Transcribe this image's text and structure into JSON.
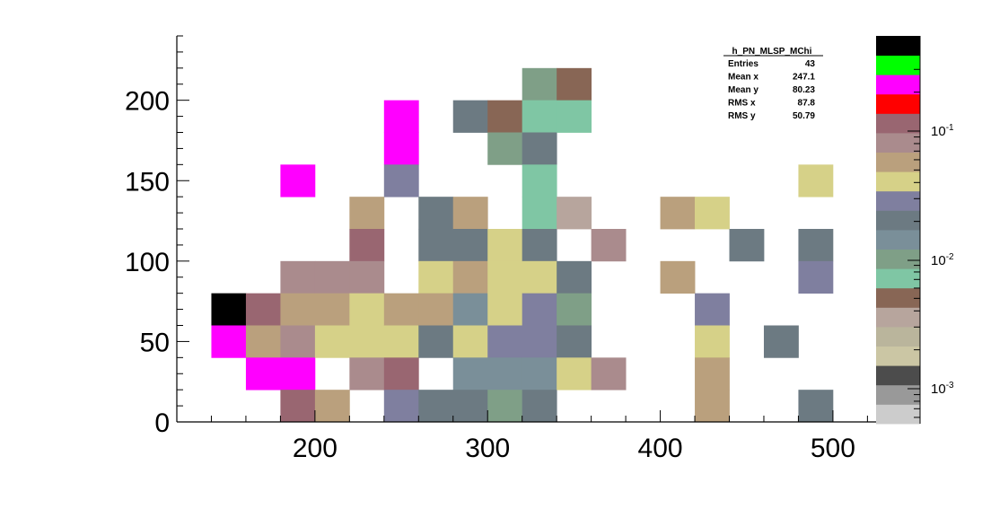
{
  "chart_data": {
    "type": "heatmap",
    "title": "",
    "xlabel": "",
    "ylabel": "",
    "xlim": [
      120,
      525
    ],
    "ylim": [
      0,
      240
    ],
    "x_ticks": [
      200,
      300,
      400,
      500
    ],
    "y_ticks": [
      0,
      50,
      100,
      150,
      200
    ],
    "x_bin_width": 20,
    "y_bin_width": 20,
    "z_scale": "log",
    "z_ticks": [
      {
        "base": "10",
        "exp": "-1"
      },
      {
        "base": "10",
        "exp": "-2"
      },
      {
        "base": "10",
        "exp": "-3"
      }
    ],
    "z_palette": [
      "#cccccc",
      "#999999",
      "#4c4c4c",
      "#cbc6a4",
      "#bab59c",
      "#b7a59d",
      "#886655",
      "#7fc6a4",
      "#7f9f87",
      "#7a8f99",
      "#6c7a82",
      "#7f7f9f",
      "#d6d188",
      "#baa07d",
      "#aa8b8d",
      "#996671",
      "#ff0000",
      "#ff00ff",
      "#00ff00",
      "#000000"
    ],
    "cells": [
      {
        "x": 150,
        "y": 70,
        "color": "#000000"
      },
      {
        "x": 150,
        "y": 50,
        "color": "#ff00ff"
      },
      {
        "x": 170,
        "y": 70,
        "color": "#996671"
      },
      {
        "x": 170,
        "y": 50,
        "color": "#baa07d"
      },
      {
        "x": 170,
        "y": 30,
        "color": "#ff00ff"
      },
      {
        "x": 190,
        "y": 150,
        "color": "#ff00ff"
      },
      {
        "x": 190,
        "y": 90,
        "color": "#aa8b8d"
      },
      {
        "x": 190,
        "y": 70,
        "color": "#baa07d"
      },
      {
        "x": 190,
        "y": 50,
        "color": "#aa8b8d"
      },
      {
        "x": 190,
        "y": 30,
        "color": "#ff00ff"
      },
      {
        "x": 190,
        "y": 10,
        "color": "#996671"
      },
      {
        "x": 210,
        "y": 90,
        "color": "#aa8b8d"
      },
      {
        "x": 210,
        "y": 70,
        "color": "#baa07d"
      },
      {
        "x": 210,
        "y": 50,
        "color": "#d6d188"
      },
      {
        "x": 210,
        "y": 10,
        "color": "#baa07d"
      },
      {
        "x": 230,
        "y": 130,
        "color": "#baa07d"
      },
      {
        "x": 230,
        "y": 110,
        "color": "#996671"
      },
      {
        "x": 230,
        "y": 90,
        "color": "#aa8b8d"
      },
      {
        "x": 230,
        "y": 70,
        "color": "#d6d188"
      },
      {
        "x": 230,
        "y": 50,
        "color": "#d6d188"
      },
      {
        "x": 230,
        "y": 30,
        "color": "#aa8b8d"
      },
      {
        "x": 250,
        "y": 190,
        "color": "#ff00ff"
      },
      {
        "x": 250,
        "y": 170,
        "color": "#ff00ff"
      },
      {
        "x": 250,
        "y": 150,
        "color": "#7f7f9f"
      },
      {
        "x": 250,
        "y": 70,
        "color": "#baa07d"
      },
      {
        "x": 250,
        "y": 50,
        "color": "#d6d188"
      },
      {
        "x": 250,
        "y": 30,
        "color": "#996671"
      },
      {
        "x": 250,
        "y": 10,
        "color": "#7f7f9f"
      },
      {
        "x": 270,
        "y": 130,
        "color": "#6c7a82"
      },
      {
        "x": 270,
        "y": 110,
        "color": "#6c7a82"
      },
      {
        "x": 270,
        "y": 90,
        "color": "#d6d188"
      },
      {
        "x": 270,
        "y": 70,
        "color": "#baa07d"
      },
      {
        "x": 270,
        "y": 50,
        "color": "#6c7a82"
      },
      {
        "x": 270,
        "y": 10,
        "color": "#6c7a82"
      },
      {
        "x": 290,
        "y": 190,
        "color": "#6c7a82"
      },
      {
        "x": 290,
        "y": 130,
        "color": "#baa07d"
      },
      {
        "x": 290,
        "y": 110,
        "color": "#6c7a82"
      },
      {
        "x": 290,
        "y": 90,
        "color": "#baa07d"
      },
      {
        "x": 290,
        "y": 70,
        "color": "#7a8f99"
      },
      {
        "x": 290,
        "y": 50,
        "color": "#d6d188"
      },
      {
        "x": 290,
        "y": 30,
        "color": "#7a8f99"
      },
      {
        "x": 290,
        "y": 10,
        "color": "#6c7a82"
      },
      {
        "x": 310,
        "y": 190,
        "color": "#886655"
      },
      {
        "x": 310,
        "y": 170,
        "color": "#7f9f87"
      },
      {
        "x": 310,
        "y": 110,
        "color": "#d6d188"
      },
      {
        "x": 310,
        "y": 90,
        "color": "#d6d188"
      },
      {
        "x": 310,
        "y": 70,
        "color": "#d6d188"
      },
      {
        "x": 310,
        "y": 50,
        "color": "#7f7f9f"
      },
      {
        "x": 310,
        "y": 30,
        "color": "#7a8f99"
      },
      {
        "x": 310,
        "y": 10,
        "color": "#7f9f87"
      },
      {
        "x": 330,
        "y": 210,
        "color": "#7f9f87"
      },
      {
        "x": 330,
        "y": 190,
        "color": "#7fc6a4"
      },
      {
        "x": 330,
        "y": 170,
        "color": "#6c7a82"
      },
      {
        "x": 330,
        "y": 150,
        "color": "#7fc6a4"
      },
      {
        "x": 330,
        "y": 130,
        "color": "#7fc6a4"
      },
      {
        "x": 330,
        "y": 110,
        "color": "#6c7a82"
      },
      {
        "x": 330,
        "y": 90,
        "color": "#d6d188"
      },
      {
        "x": 330,
        "y": 70,
        "color": "#7f7f9f"
      },
      {
        "x": 330,
        "y": 50,
        "color": "#7f7f9f"
      },
      {
        "x": 330,
        "y": 30,
        "color": "#7a8f99"
      },
      {
        "x": 330,
        "y": 10,
        "color": "#6c7a82"
      },
      {
        "x": 350,
        "y": 210,
        "color": "#886655"
      },
      {
        "x": 350,
        "y": 190,
        "color": "#7fc6a4"
      },
      {
        "x": 350,
        "y": 130,
        "color": "#b7a59d"
      },
      {
        "x": 350,
        "y": 90,
        "color": "#6c7a82"
      },
      {
        "x": 350,
        "y": 70,
        "color": "#7f9f87"
      },
      {
        "x": 350,
        "y": 50,
        "color": "#6c7a82"
      },
      {
        "x": 350,
        "y": 30,
        "color": "#d6d188"
      },
      {
        "x": 370,
        "y": 110,
        "color": "#aa8b8d"
      },
      {
        "x": 370,
        "y": 30,
        "color": "#aa8b8d"
      },
      {
        "x": 410,
        "y": 130,
        "color": "#baa07d"
      },
      {
        "x": 410,
        "y": 90,
        "color": "#baa07d"
      },
      {
        "x": 430,
        "y": 130,
        "color": "#d6d188"
      },
      {
        "x": 430,
        "y": 70,
        "color": "#7f7f9f"
      },
      {
        "x": 430,
        "y": 50,
        "color": "#d6d188"
      },
      {
        "x": 430,
        "y": 30,
        "color": "#baa07d"
      },
      {
        "x": 430,
        "y": 10,
        "color": "#baa07d"
      },
      {
        "x": 450,
        "y": 110,
        "color": "#6c7a82"
      },
      {
        "x": 470,
        "y": 50,
        "color": "#6c7a82"
      },
      {
        "x": 490,
        "y": 150,
        "color": "#d6d188"
      },
      {
        "x": 490,
        "y": 110,
        "color": "#6c7a82"
      },
      {
        "x": 490,
        "y": 90,
        "color": "#7f7f9f"
      },
      {
        "x": 490,
        "y": 10,
        "color": "#6c7a82"
      }
    ],
    "stats": {
      "title": "h_PN_MLSP_MChi",
      "rows": [
        {
          "label": "Entries",
          "value": "43"
        },
        {
          "label": "Mean x",
          "value": "247.1"
        },
        {
          "label": "Mean y",
          "value": "80.23"
        },
        {
          "label": "RMS x",
          "value": "87.8"
        },
        {
          "label": "RMS y",
          "value": "50.79"
        }
      ]
    }
  }
}
